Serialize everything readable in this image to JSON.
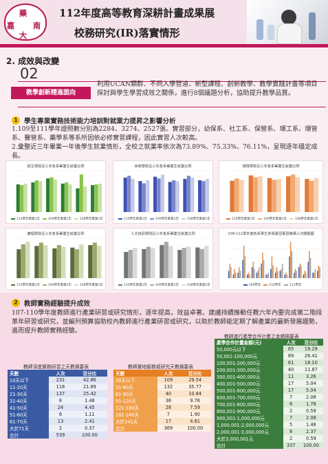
{
  "header": {
    "title_line1": "112年度高等教育深耕計畫成果展",
    "title_line2": "校務研究(IR)落實情形",
    "seal_chars": [
      "嘉",
      "藥",
      "大",
      "南"
    ]
  },
  "section": {
    "title": "2. 成效與改變",
    "number": "02",
    "tag": "教學創新精進面向",
    "intro": "利用UCAN類群、不同入學管道、新型課程、創新教學、教學實踐計畫等項目探討與學生學習成效之關係，進行8個議題分析，協助提升教學品質。"
  },
  "item1": {
    "num": "1",
    "title": "學生專業實務技術能力培訓對就業力提昇之影響分析",
    "p1": "1.109至111學年證照數分別為2284、3274、2527張。實習部分，幼保系、社工系、保營系、環工系、環管系、醫管系、藥學系等系所因依必修實習課程，因此實習人次較高。",
    "p2": "2.彙整近三年畢業一年後學生就業情形，全校之就業率依次為73.89%、75.33%、76.11%，呈現逐年穩定成長。"
  },
  "chart_data": [
    {
      "type": "bar",
      "title": "民生學院近三年各系畢業生就業比例",
      "series": [
        {
          "name": "110學年畢業1年",
          "color": "#2e7d32"
        },
        {
          "name": "109學年畢業1年",
          "color": "#8bc34a"
        },
        {
          "name": "108學年畢業1年",
          "color": "#c5e1a5"
        }
      ],
      "values": [
        [
          70,
          68,
          72
        ],
        [
          75,
          80,
          78
        ],
        [
          85,
          88,
          82
        ],
        [
          72,
          75,
          70
        ],
        [
          60,
          95,
          65
        ],
        [
          68,
          70,
          72
        ]
      ]
    },
    {
      "type": "bar",
      "title": "休閒學院近三年各系畢業生就業比例",
      "series": [
        {
          "name": "110學年畢業1年",
          "color": "#3f51b5"
        },
        {
          "name": "109學年畢業1年",
          "color": "#7986cb"
        },
        {
          "name": "108學年畢業1年",
          "color": "#c5cae9"
        }
      ],
      "values": [
        [
          78,
          82,
          75
        ],
        [
          70,
          65,
          72
        ],
        [
          80,
          76,
          85
        ],
        [
          68,
          72,
          70
        ],
        [
          75,
          82,
          78
        ],
        [
          72,
          70,
          75
        ]
      ]
    },
    {
      "type": "bar",
      "title": "環境學院近三年各系畢業生就業比例",
      "series": [
        {
          "name": "110學年畢業1年",
          "color": "#e07b39"
        },
        {
          "name": "109學年畢業1年",
          "color": "#f2a86f"
        },
        {
          "name": "108學年畢業1年",
          "color": "#f7d0b0"
        }
      ],
      "values": [
        [
          70,
          75,
          72
        ],
        [
          82,
          78,
          80
        ],
        [
          76,
          72,
          74
        ],
        [
          80,
          84,
          78
        ],
        [
          74,
          70,
          76
        ]
      ]
    },
    {
      "type": "bar",
      "title": "藥理學院近三年各系畢業生就業比例",
      "series": [
        {
          "name": "110學年畢業1年",
          "color": "#5c6b3a"
        },
        {
          "name": "109學年畢業1年",
          "color": "#9aa86b"
        },
        {
          "name": "108學年畢業1年",
          "color": "#d4dbb8"
        }
      ],
      "values": [
        [
          70,
          82,
          88
        ],
        [
          78,
          86,
          80
        ],
        [
          72,
          80,
          76
        ],
        [
          74,
          70,
          82
        ],
        [
          80,
          86,
          78
        ]
      ]
    },
    {
      "type": "bar",
      "title": "人文資訊學院近三年各系畢業生就業比例",
      "series": [
        {
          "name": "110學年畢業1年",
          "color": "#757575"
        },
        {
          "name": "109學年畢業1年",
          "color": "#a9a9a9"
        },
        {
          "name": "108學年畢業1年",
          "color": "#d9d9d9"
        }
      ],
      "values": [
        [
          65,
          70,
          75
        ],
        [
          72,
          78,
          74
        ],
        [
          82,
          90,
          80
        ],
        [
          70,
          75,
          78
        ],
        [
          76,
          72,
          80
        ]
      ]
    },
    {
      "type": "bar",
      "title": "109-111學年度各系學生參與實習實習機構人次體驗圖",
      "series": [
        {
          "name": "109學年",
          "color": "#3f5fa8"
        },
        {
          "name": "110學年",
          "color": "#e0873e"
        },
        {
          "name": "111學年",
          "color": "#9e9e9e"
        }
      ],
      "values": [
        [
          4,
          8,
          6
        ],
        [
          2,
          5,
          3
        ],
        [
          3,
          6,
          4
        ],
        [
          10,
          18,
          12
        ],
        [
          2,
          3,
          2
        ],
        [
          6,
          9,
          5
        ],
        [
          3,
          4,
          6
        ],
        [
          8,
          14,
          10
        ],
        [
          2,
          2,
          3
        ],
        [
          5,
          12,
          7
        ],
        [
          3,
          6,
          4
        ],
        [
          4,
          5,
          8
        ],
        [
          2,
          3,
          2
        ],
        [
          12,
          20,
          15
        ],
        [
          3,
          5,
          4
        ],
        [
          6,
          8,
          7
        ],
        [
          2,
          4,
          3
        ],
        [
          9,
          15,
          11
        ],
        [
          3,
          3,
          5
        ],
        [
          4,
          7,
          6
        ]
      ]
    }
  ],
  "item2": {
    "num": "2",
    "title": "教師實務經驗提升成效",
    "para": "107-110學年度教師進行產業研習或研究情形，逐年提高，效益卓著。建議持續推動任教六年內要完成第二階段革年研習或研究，並編列預算協助校內教師進行產業研習或研究，以助於教師能定期了解產業的最新發展趨勢，進而提升教師實務經驗。"
  },
  "tables": {
    "deep": {
      "caption": "教師深度實務研習之天數摘要表",
      "headers": [
        "天數",
        "人次",
        "百分比"
      ],
      "rows": [
        [
          "10天以下",
          "231",
          "42.86"
        ],
        [
          "11-20天",
          "118",
          "21.89"
        ],
        [
          "21-30天",
          "137",
          "25.42"
        ],
        [
          "31-40天",
          "8",
          "1.48"
        ],
        [
          "41-50天",
          "24",
          "4.45"
        ],
        [
          "51-60天",
          "6",
          "1.11"
        ],
        [
          "61-70天",
          "13",
          "2.41"
        ],
        [
          "大於71天",
          "2",
          "0.37"
        ],
        [
          "合計",
          "539",
          "100.00"
        ]
      ]
    },
    "service": {
      "caption": "教師實地服務或研究天數摘要表",
      "headers": [
        "天數",
        "人次",
        "百分比"
      ],
      "rows": [
        [
          "30天以下",
          "109",
          "29.54"
        ],
        [
          "31-60天",
          "132",
          "35.77"
        ],
        [
          "61-90天",
          "40",
          "10.84"
        ],
        [
          "91-120天",
          "36",
          "9.76"
        ],
        [
          "121-180天",
          "28",
          "7.59"
        ],
        [
          "181-240天",
          "7",
          "1.90"
        ],
        [
          "大於241天",
          "17",
          "4.61"
        ],
        [
          "合計",
          "369",
          "100.00"
        ]
      ]
    },
    "amount": {
      "caption": "教師進行產學合作計畫之金額摘要表",
      "headers": [
        "產學合作計畫金額(元)",
        "人次",
        "百分比"
      ],
      "rows": [
        [
          "50,000元以下",
          "65",
          "19.29"
        ],
        [
          "50,001-100,000元",
          "89",
          "26.41"
        ],
        [
          "100,001-200,000元",
          "61",
          "18.10"
        ],
        [
          "200,001-300,000元",
          "40",
          "11.87"
        ],
        [
          "300,001-400,000元",
          "11",
          "3.26"
        ],
        [
          "400,001-500,000元",
          "17",
          "5.04"
        ],
        [
          "500,001-600,000元",
          "17",
          "5.04"
        ],
        [
          "600,001-700,000元",
          "7",
          "2.08"
        ],
        [
          "700,001-800,000元",
          "6",
          "1.78"
        ],
        [
          "800,001-900,000元",
          "2",
          "0.59"
        ],
        [
          "900,001-1,000,000元",
          "7",
          "2.08"
        ],
        [
          "1,000,001-2,000,000元",
          "5",
          "1.48"
        ],
        [
          "2,000,001-3,000,000元",
          "8",
          "2.37"
        ],
        [
          "大於3,000,001元",
          "2",
          "0.59"
        ],
        [
          "合計",
          "337",
          "100.00"
        ]
      ]
    }
  },
  "colors": {
    "accent": "#c2185b",
    "yellow": "#f2c000",
    "blue": "#3a5ba3",
    "orange": "#e67e22",
    "green": "#3b7d3c"
  }
}
